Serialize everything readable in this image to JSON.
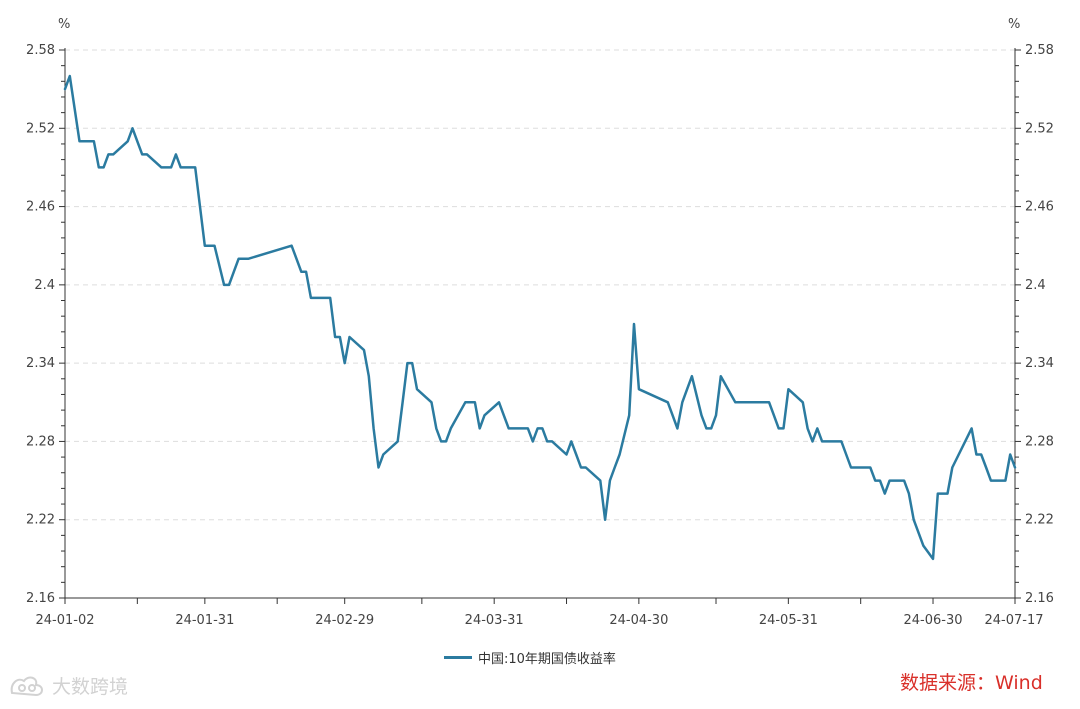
{
  "chart_data": {
    "type": "line",
    "x_ticks": [
      "24-01-02",
      "24-01-31",
      "24-02-29",
      "24-03-31",
      "24-04-30",
      "24-05-31",
      "24-06-30",
      "24-07-17"
    ],
    "y_ticks": [
      "2.58",
      "2.52",
      "2.46",
      "2.4",
      "2.34",
      "2.28",
      "2.22",
      "2.16"
    ],
    "ylim": [
      2.16,
      2.58
    ],
    "xlim": [
      "2024-01-02",
      "2024-07-17"
    ],
    "y_unit_left": "%",
    "y_unit_right": "%",
    "grid": "horizontal dashed",
    "legend_position": "bottom-center",
    "colors": {
      "series": "#2b7ba0",
      "grid": "#dddddd",
      "axis": "#333333",
      "source": "#d9302a"
    },
    "series": [
      {
        "name": "中国:10年期国债收益率",
        "points": [
          [
            "2024-01-02",
            2.55
          ],
          [
            "2024-01-03",
            2.56
          ],
          [
            "2024-01-05",
            2.51
          ],
          [
            "2024-01-08",
            2.51
          ],
          [
            "2024-01-09",
            2.49
          ],
          [
            "2024-01-10",
            2.49
          ],
          [
            "2024-01-11",
            2.5
          ],
          [
            "2024-01-12",
            2.5
          ],
          [
            "2024-01-15",
            2.51
          ],
          [
            "2024-01-16",
            2.52
          ],
          [
            "2024-01-17",
            2.51
          ],
          [
            "2024-01-18",
            2.5
          ],
          [
            "2024-01-19",
            2.5
          ],
          [
            "2024-01-22",
            2.49
          ],
          [
            "2024-01-23",
            2.49
          ],
          [
            "2024-01-24",
            2.49
          ],
          [
            "2024-01-25",
            2.5
          ],
          [
            "2024-01-26",
            2.49
          ],
          [
            "2024-01-29",
            2.49
          ],
          [
            "2024-01-30",
            2.46
          ],
          [
            "2024-01-31",
            2.43
          ],
          [
            "2024-02-01",
            2.43
          ],
          [
            "2024-02-02",
            2.43
          ],
          [
            "2024-02-04",
            2.4
          ],
          [
            "2024-02-05",
            2.4
          ],
          [
            "2024-02-06",
            2.41
          ],
          [
            "2024-02-07",
            2.42
          ],
          [
            "2024-02-08",
            2.42
          ],
          [
            "2024-02-09",
            2.42
          ],
          [
            "2024-02-18",
            2.43
          ],
          [
            "2024-02-19",
            2.42
          ],
          [
            "2024-02-20",
            2.41
          ],
          [
            "2024-02-21",
            2.41
          ],
          [
            "2024-02-22",
            2.39
          ],
          [
            "2024-02-23",
            2.39
          ],
          [
            "2024-02-26",
            2.39
          ],
          [
            "2024-02-27",
            2.36
          ],
          [
            "2024-02-28",
            2.36
          ],
          [
            "2024-02-29",
            2.34
          ],
          [
            "2024-03-01",
            2.36
          ],
          [
            "2024-03-04",
            2.35
          ],
          [
            "2024-03-05",
            2.33
          ],
          [
            "2024-03-06",
            2.29
          ],
          [
            "2024-03-07",
            2.26
          ],
          [
            "2024-03-08",
            2.27
          ],
          [
            "2024-03-11",
            2.28
          ],
          [
            "2024-03-12",
            2.31
          ],
          [
            "2024-03-13",
            2.34
          ],
          [
            "2024-03-14",
            2.34
          ],
          [
            "2024-03-15",
            2.32
          ],
          [
            "2024-03-18",
            2.31
          ],
          [
            "2024-03-19",
            2.29
          ],
          [
            "2024-03-20",
            2.28
          ],
          [
            "2024-03-21",
            2.28
          ],
          [
            "2024-03-22",
            2.29
          ],
          [
            "2024-03-25",
            2.31
          ],
          [
            "2024-03-26",
            2.31
          ],
          [
            "2024-03-27",
            2.31
          ],
          [
            "2024-03-28",
            2.29
          ],
          [
            "2024-03-29",
            2.3
          ],
          [
            "2024-04-01",
            2.31
          ],
          [
            "2024-04-02",
            2.3
          ],
          [
            "2024-04-03",
            2.29
          ],
          [
            "2024-04-07",
            2.29
          ],
          [
            "2024-04-08",
            2.28
          ],
          [
            "2024-04-09",
            2.29
          ],
          [
            "2024-04-10",
            2.29
          ],
          [
            "2024-04-11",
            2.28
          ],
          [
            "2024-04-12",
            2.28
          ],
          [
            "2024-04-15",
            2.27
          ],
          [
            "2024-04-16",
            2.28
          ],
          [
            "2024-04-17",
            2.27
          ],
          [
            "2024-04-18",
            2.26
          ],
          [
            "2024-04-19",
            2.26
          ],
          [
            "2024-04-22",
            2.25
          ],
          [
            "2024-04-23",
            2.22
          ],
          [
            "2024-04-24",
            2.25
          ],
          [
            "2024-04-25",
            2.26
          ],
          [
            "2024-04-26",
            2.27
          ],
          [
            "2024-04-28",
            2.3
          ],
          [
            "2024-04-29",
            2.37
          ],
          [
            "2024-04-30",
            2.32
          ],
          [
            "2024-05-06",
            2.31
          ],
          [
            "2024-05-07",
            2.3
          ],
          [
            "2024-05-08",
            2.29
          ],
          [
            "2024-05-09",
            2.31
          ],
          [
            "2024-05-10",
            2.32
          ],
          [
            "2024-05-11",
            2.33
          ],
          [
            "2024-05-13",
            2.3
          ],
          [
            "2024-05-14",
            2.29
          ],
          [
            "2024-05-15",
            2.29
          ],
          [
            "2024-05-16",
            2.3
          ],
          [
            "2024-05-17",
            2.33
          ],
          [
            "2024-05-20",
            2.31
          ],
          [
            "2024-05-21",
            2.31
          ],
          [
            "2024-05-22",
            2.31
          ],
          [
            "2024-05-23",
            2.31
          ],
          [
            "2024-05-24",
            2.31
          ],
          [
            "2024-05-27",
            2.31
          ],
          [
            "2024-05-28",
            2.3
          ],
          [
            "2024-05-29",
            2.29
          ],
          [
            "2024-05-30",
            2.29
          ],
          [
            "2024-05-31",
            2.32
          ],
          [
            "2024-06-03",
            2.31
          ],
          [
            "2024-06-04",
            2.29
          ],
          [
            "2024-06-05",
            2.28
          ],
          [
            "2024-06-06",
            2.29
          ],
          [
            "2024-06-07",
            2.28
          ],
          [
            "2024-06-11",
            2.28
          ],
          [
            "2024-06-12",
            2.27
          ],
          [
            "2024-06-13",
            2.26
          ],
          [
            "2024-06-14",
            2.26
          ],
          [
            "2024-06-17",
            2.26
          ],
          [
            "2024-06-18",
            2.25
          ],
          [
            "2024-06-19",
            2.25
          ],
          [
            "2024-06-20",
            2.24
          ],
          [
            "2024-06-21",
            2.25
          ],
          [
            "2024-06-24",
            2.25
          ],
          [
            "2024-06-25",
            2.24
          ],
          [
            "2024-06-26",
            2.22
          ],
          [
            "2024-06-28",
            2.2
          ],
          [
            "2024-06-30",
            2.19
          ],
          [
            "2024-07-01",
            2.24
          ],
          [
            "2024-07-02",
            2.24
          ],
          [
            "2024-07-03",
            2.24
          ],
          [
            "2024-07-04",
            2.26
          ],
          [
            "2024-07-08",
            2.29
          ],
          [
            "2024-07-09",
            2.27
          ],
          [
            "2024-07-10",
            2.27
          ],
          [
            "2024-07-11",
            2.26
          ],
          [
            "2024-07-12",
            2.25
          ],
          [
            "2024-07-15",
            2.25
          ],
          [
            "2024-07-16",
            2.27
          ],
          [
            "2024-07-17",
            2.26
          ]
        ]
      }
    ]
  },
  "legend": {
    "label": "中国:10年期国债收益率"
  },
  "source": {
    "text": "数据来源：Wind"
  },
  "watermark": {
    "text": "大数跨境"
  }
}
